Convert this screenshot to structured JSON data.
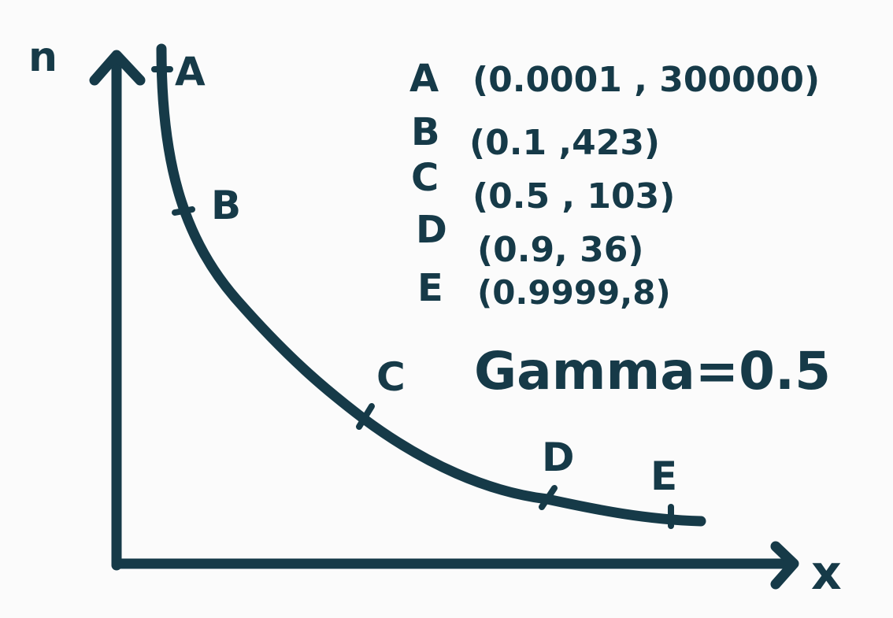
{
  "colors": {
    "ink": "#163a48",
    "background": "#fbfbfb"
  },
  "axes": {
    "y_label": "n",
    "x_label": "x"
  },
  "curve_points": [
    {
      "label": "A",
      "coords": "(0.0001 , 300000)"
    },
    {
      "label": "B",
      "coords": "(0.1 ,423)"
    },
    {
      "label": "C",
      "coords": "(0.5 , 103)"
    },
    {
      "label": "D",
      "coords": "(0.9, 36)"
    },
    {
      "label": "E",
      "coords": "(0.9999,8)"
    }
  ],
  "annotation": "Gamma=0.5"
}
